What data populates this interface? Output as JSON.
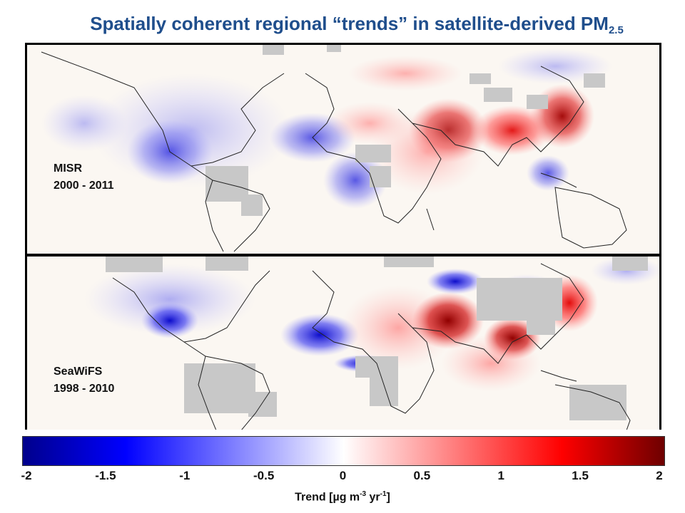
{
  "title": {
    "main": "Spatially coherent regional “trends” in satellite-derived PM",
    "subscript": "2.5"
  },
  "panels": [
    {
      "name": "MISR",
      "years": "2000 - 2011"
    },
    {
      "name": "SeaWiFS",
      "years": "1998 - 2010"
    }
  ],
  "colorbar": {
    "ticks": [
      "-2",
      "-1.5",
      "-1",
      "-0.5",
      "0",
      "0.5",
      "1",
      "1.5",
      "2"
    ],
    "label_prefix": "Trend [µg m",
    "label_exp1": "-3",
    "label_mid": " yr",
    "label_exp2": "-1",
    "label_suffix": "]",
    "range": [
      -2,
      2
    ],
    "colors": [
      "#00008c",
      "#0000ff",
      "#ffffff",
      "#ff0000",
      "#6e0000"
    ]
  },
  "map_colors": {
    "land_missing": "#c8c8c8",
    "coastline": "#222222"
  }
}
